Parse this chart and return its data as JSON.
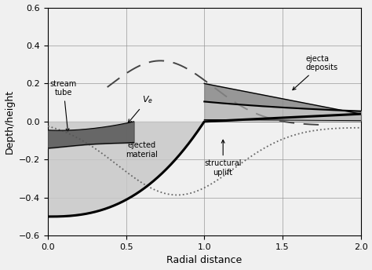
{
  "xlim": [
    0,
    2
  ],
  "ylim": [
    -0.6,
    0.6
  ],
  "xlabel": "Radial distance",
  "ylabel": "Depth/height",
  "xticks": [
    0,
    0.5,
    1,
    1.5,
    2
  ],
  "yticks": [
    -0.6,
    -0.4,
    -0.2,
    0,
    0.2,
    0.4,
    0.6
  ],
  "background_color": "#f0f0f0",
  "grid_color": "#999999"
}
